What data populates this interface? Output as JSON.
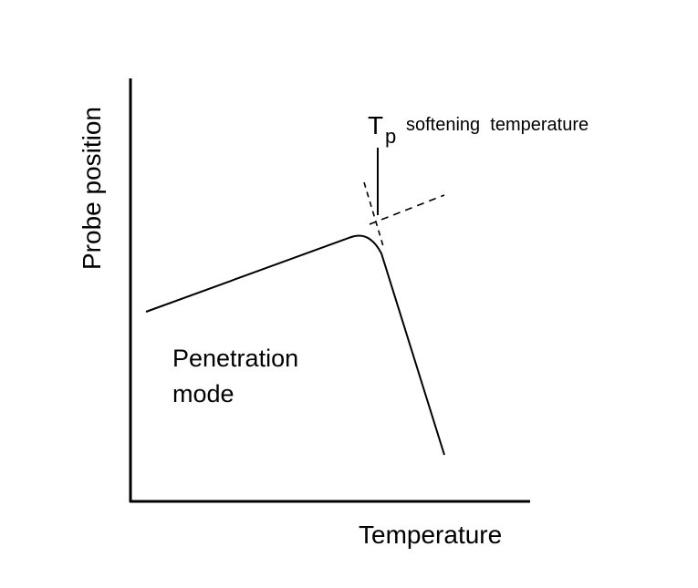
{
  "diagram": {
    "y_axis_label": "Probe position",
    "x_axis_label": "Temperature",
    "tp_symbol": "T",
    "tp_subscript": "p",
    "tp_description": "softening  temperature",
    "mode_label_line1": "Penetration",
    "mode_label_line2": "mode"
  },
  "colors": {
    "line": "#000000",
    "background": "#ffffff"
  }
}
